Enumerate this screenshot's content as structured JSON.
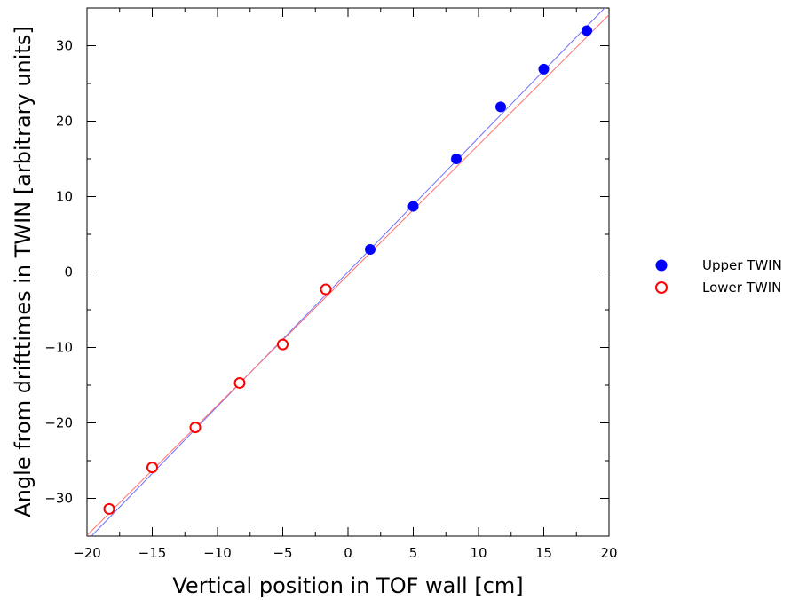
{
  "chart_data": {
    "type": "scatter",
    "xlabel": "Vertical position in TOF wall [cm]",
    "ylabel": "Angle from drifttimes in TWIN [arbitrary units]",
    "xlim": [
      -20,
      20
    ],
    "ylim": [
      -35,
      35
    ],
    "x_major_ticks": [
      -20,
      -15,
      -10,
      -5,
      0,
      5,
      10,
      15,
      20
    ],
    "y_major_ticks": [
      -30,
      -20,
      -10,
      0,
      10,
      20,
      30
    ],
    "x_tick_labels": [
      "−20",
      "−15",
      "−10",
      "−5",
      "0",
      "5",
      "10",
      "15",
      "20"
    ],
    "y_tick_labels": [
      "−30",
      "−20",
      "−10",
      "0",
      "10",
      "20",
      "30"
    ],
    "grid": false,
    "legend_position": "right",
    "series": [
      {
        "name": "Upper TWIN",
        "marker": "filled-circle",
        "color": "#0000ff",
        "points": [
          {
            "x": 1.7,
            "y": 3.0
          },
          {
            "x": 5.0,
            "y": 8.7
          },
          {
            "x": 8.3,
            "y": 15.0
          },
          {
            "x": 11.7,
            "y": 21.9
          },
          {
            "x": 15.0,
            "y": 26.9
          },
          {
            "x": 18.3,
            "y": 32.0
          }
        ],
        "fit_line": {
          "x": [
            -20,
            20
          ],
          "y": [
            -35.6,
            35.6
          ],
          "color": "#6f6fff"
        }
      },
      {
        "name": "Lower TWIN",
        "marker": "open-circle",
        "color": "#ff0000",
        "points": [
          {
            "x": -18.3,
            "y": -31.4
          },
          {
            "x": -15.0,
            "y": -25.9
          },
          {
            "x": -11.7,
            "y": -20.6
          },
          {
            "x": -8.3,
            "y": -14.7
          },
          {
            "x": -5.0,
            "y": -9.6
          },
          {
            "x": -1.7,
            "y": -2.3
          }
        ],
        "fit_line": {
          "x": [
            -20,
            20
          ],
          "y": [
            -34.9,
            34.1
          ],
          "color": "#ff6f6f"
        }
      }
    ]
  }
}
